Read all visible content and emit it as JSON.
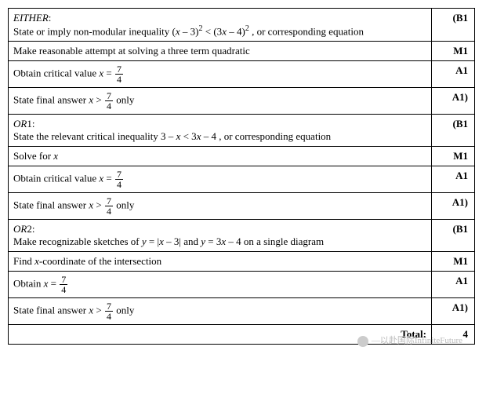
{
  "rows": [
    {
      "mark": "(B1",
      "parts": [
        {
          "type": "text",
          "style": "ital",
          "value": "EITHER"
        },
        {
          "type": "text",
          "value": ":"
        },
        {
          "type": "br"
        },
        {
          "type": "text",
          "value": "State or imply non-modular inequality ("
        },
        {
          "type": "text",
          "style": "ital",
          "value": "x"
        },
        {
          "type": "text",
          "value": " – 3)"
        },
        {
          "type": "sup",
          "value": "2"
        },
        {
          "type": "text",
          "value": " < (3"
        },
        {
          "type": "text",
          "style": "ital",
          "value": "x"
        },
        {
          "type": "text",
          "value": " – 4)"
        },
        {
          "type": "sup",
          "value": "2"
        },
        {
          "type": "text",
          "value": " , or corresponding equation"
        }
      ]
    },
    {
      "mark": "M1",
      "parts": [
        {
          "type": "text",
          "value": "Make reasonable attempt at solving a three term quadratic"
        }
      ]
    },
    {
      "mark": "A1",
      "parts": [
        {
          "type": "text",
          "value": "Obtain critical value "
        },
        {
          "type": "text",
          "style": "ital",
          "value": "x"
        },
        {
          "type": "text",
          "value": " = "
        },
        {
          "type": "frac",
          "num": "7",
          "den": "4"
        }
      ]
    },
    {
      "mark": "A1)",
      "parts": [
        {
          "type": "text",
          "value": "State final answer "
        },
        {
          "type": "text",
          "style": "ital",
          "value": "x"
        },
        {
          "type": "text",
          "value": " > "
        },
        {
          "type": "frac",
          "num": "7",
          "den": "4"
        },
        {
          "type": "text",
          "value": " only"
        }
      ]
    },
    {
      "mark": "(B1",
      "parts": [
        {
          "type": "text",
          "style": "ital",
          "value": "OR"
        },
        {
          "type": "text",
          "value": "1:"
        },
        {
          "type": "br"
        },
        {
          "type": "text",
          "value": "State the relevant critical inequality  3 – "
        },
        {
          "type": "text",
          "style": "ital",
          "value": "x"
        },
        {
          "type": "text",
          "value": " < 3"
        },
        {
          "type": "text",
          "style": "ital",
          "value": "x"
        },
        {
          "type": "text",
          "value": " – 4 , or corresponding equation"
        }
      ]
    },
    {
      "mark": "M1",
      "parts": [
        {
          "type": "text",
          "value": "Solve for "
        },
        {
          "type": "text",
          "style": "ital",
          "value": "x"
        }
      ]
    },
    {
      "mark": "A1",
      "parts": [
        {
          "type": "text",
          "value": "Obtain critical value "
        },
        {
          "type": "text",
          "style": "ital",
          "value": "x"
        },
        {
          "type": "text",
          "value": " = "
        },
        {
          "type": "frac",
          "num": "7",
          "den": "4"
        }
      ]
    },
    {
      "mark": "A1)",
      "parts": [
        {
          "type": "text",
          "value": "State final answer "
        },
        {
          "type": "text",
          "style": "ital",
          "value": "x"
        },
        {
          "type": "text",
          "value": " > "
        },
        {
          "type": "frac",
          "num": "7",
          "den": "4"
        },
        {
          "type": "text",
          "value": " only"
        }
      ]
    },
    {
      "mark": "(B1",
      "parts": [
        {
          "type": "text",
          "style": "ital",
          "value": "OR"
        },
        {
          "type": "text",
          "value": "2:"
        },
        {
          "type": "br"
        },
        {
          "type": "text",
          "value": "Make recognizable sketches of  "
        },
        {
          "type": "text",
          "style": "ital",
          "value": "y"
        },
        {
          "type": "text",
          "value": " = |"
        },
        {
          "type": "text",
          "style": "ital",
          "value": "x"
        },
        {
          "type": "text",
          "value": " – 3|  and "
        },
        {
          "type": "text",
          "style": "ital",
          "value": "y"
        },
        {
          "type": "text",
          "value": " = 3"
        },
        {
          "type": "text",
          "style": "ital",
          "value": "x"
        },
        {
          "type": "text",
          "value": " – 4  on a single diagram"
        }
      ]
    },
    {
      "mark": "M1",
      "parts": [
        {
          "type": "text",
          "value": "Find "
        },
        {
          "type": "text",
          "style": "ital",
          "value": "x"
        },
        {
          "type": "text",
          "value": "-coordinate of the intersection"
        }
      ]
    },
    {
      "mark": "A1",
      "parts": [
        {
          "type": "text",
          "value": "Obtain "
        },
        {
          "type": "text",
          "style": "ital",
          "value": "x"
        },
        {
          "type": "text",
          "value": " = "
        },
        {
          "type": "frac",
          "num": "7",
          "den": "4"
        }
      ]
    },
    {
      "mark": "A1)",
      "parts": [
        {
          "type": "text",
          "value": "State final answer "
        },
        {
          "type": "text",
          "style": "ital",
          "value": "x"
        },
        {
          "type": "text",
          "value": " > "
        },
        {
          "type": "frac",
          "num": "7",
          "den": "4"
        },
        {
          "type": "text",
          "value": " only"
        }
      ]
    }
  ],
  "total": {
    "label": "Total:",
    "value": "4"
  },
  "watermark": "—以赴国际InfiniteFuture"
}
